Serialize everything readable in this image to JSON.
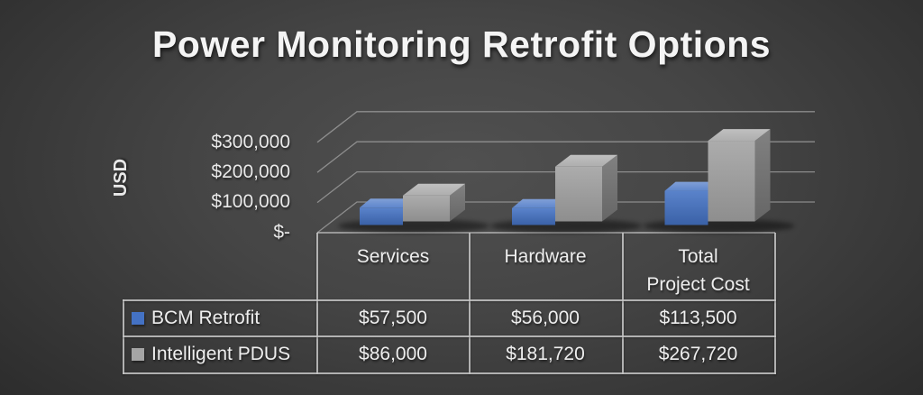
{
  "title": "Power Monitoring Retrofit Options",
  "chart_data": {
    "type": "bar",
    "style": "3d-clustered-with-data-table",
    "title": "Power Monitoring Retrofit Options",
    "categories": [
      "Services",
      "Hardware",
      "Total Project Cost"
    ],
    "series": [
      {
        "name": "BCM Retrofit",
        "color": "#4472C4",
        "values": [
          57500,
          56000,
          113500
        ]
      },
      {
        "name": "Intelligent PDUS",
        "color": "#A5A5A5",
        "values": [
          86000,
          181720,
          267720
        ]
      }
    ],
    "y_axis": {
      "title": "USD",
      "tick_labels": [
        "$-",
        "$100,000",
        "$200,000",
        "$300,000"
      ],
      "min": 0,
      "max": 300000,
      "tick_step": 100000
    },
    "grid": "horizontal-3d",
    "legend_position": "data-table-left"
  },
  "table": {
    "columns": [
      "Services",
      "Hardware",
      "Total\nProject Cost"
    ],
    "rows": [
      {
        "label": "BCM Retrofit",
        "swatch_color": "#4472C4",
        "values": [
          "$57,500",
          "$56,000",
          "$113,500"
        ]
      },
      {
        "label": "Intelligent PDUS",
        "swatch_color": "#A5A5A5",
        "values": [
          "$86,000",
          "$181,720",
          "$267,720"
        ]
      }
    ]
  },
  "colors": {
    "series_blue": "#4472C4",
    "series_gray": "#A5A5A5",
    "gridline": "#a0a0a0",
    "table_border": "#c6c6c6",
    "text": "#ececec"
  }
}
